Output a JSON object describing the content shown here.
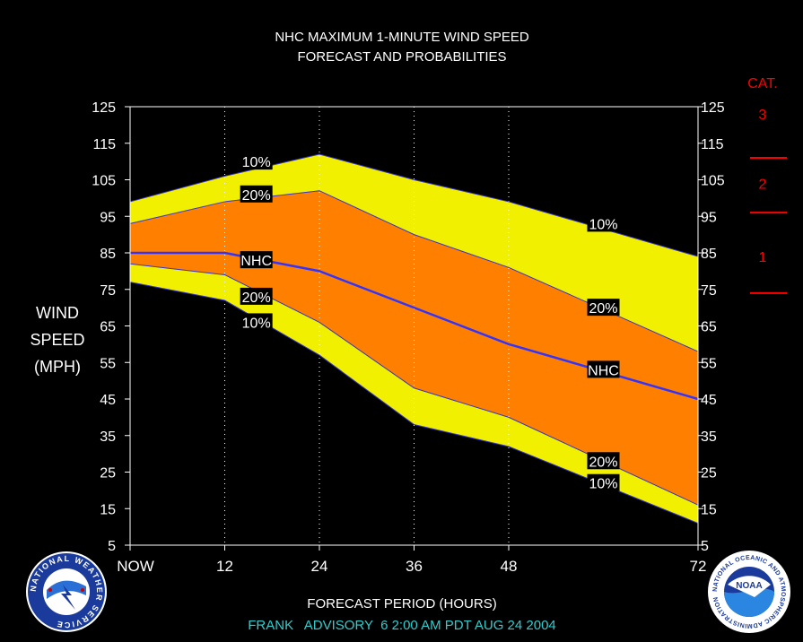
{
  "chart_data": {
    "type": "area",
    "title": "NHC MAXIMUM 1-MINUTE WIND SPEED",
    "subtitle": "FORECAST AND PROBABILITIES",
    "xlabel": "FORECAST PERIOD (HOURS)",
    "ylabel_lines": [
      "WIND",
      "SPEED",
      "(MPH)"
    ],
    "x_ticks": [
      "NOW",
      "12",
      "24",
      "36",
      "48",
      "72"
    ],
    "x_tick_values": [
      0,
      12,
      24,
      36,
      48,
      72
    ],
    "xlim": [
      0,
      72
    ],
    "ylim": [
      5,
      125
    ],
    "y_ticks": [
      5,
      15,
      25,
      35,
      45,
      55,
      65,
      75,
      85,
      95,
      105,
      115,
      125
    ],
    "x": [
      0,
      12,
      24,
      36,
      48,
      72
    ],
    "series": {
      "upper10": [
        99,
        106,
        112,
        105,
        99,
        84
      ],
      "upper20": [
        93,
        99,
        102,
        90,
        81,
        58
      ],
      "nhc": [
        85,
        85,
        80,
        70,
        60,
        45
      ],
      "lower20": [
        82,
        79,
        66,
        48,
        40,
        16
      ],
      "lower10": [
        77,
        72,
        57,
        38,
        32,
        11
      ]
    },
    "band_labels": [
      {
        "text": "10%",
        "x": 16,
        "y": 110
      },
      {
        "text": "20%",
        "x": 16,
        "y": 101
      },
      {
        "text": "NHC",
        "x": 16,
        "y": 83
      },
      {
        "text": "20%",
        "x": 16,
        "y": 73
      },
      {
        "text": "10%",
        "x": 16,
        "y": 66
      },
      {
        "text": "10%",
        "x": 60,
        "y": 93
      },
      {
        "text": "20%",
        "x": 60,
        "y": 70
      },
      {
        "text": "NHC",
        "x": 60,
        "y": 53
      },
      {
        "text": "20%",
        "x": 60,
        "y": 28
      },
      {
        "text": "10%",
        "x": 60,
        "y": 22
      }
    ],
    "categories": {
      "heading": "CAT.",
      "labels": [
        {
          "text": "3",
          "y": 123
        },
        {
          "text": "2",
          "y": 104
        },
        {
          "text": "1",
          "y": 84
        }
      ],
      "boundaries": [
        111,
        96,
        74
      ]
    },
    "colors": {
      "background": "#000000",
      "plot_background": "#000000",
      "band10": "#f0f000",
      "band20": "#ff8000",
      "nhc_line": "#3333ff",
      "edge_line": "#3333cc",
      "category": "#ff0000",
      "footer": "#33cccc"
    },
    "grid": "vertical-dotted"
  },
  "footer": "FRANK   ADVISORY  6 2:00 AM PDT AUG 24 2004",
  "logos": {
    "left": "national-weather-service-seal",
    "right": "noaa-seal",
    "left_ring_text": "NATIONAL WEATHER SERVICE",
    "right_ring_text": "NATIONAL OCEANIC AND ATMOSPHERIC ADMINISTRATION",
    "right_badge": "NOAA"
  }
}
